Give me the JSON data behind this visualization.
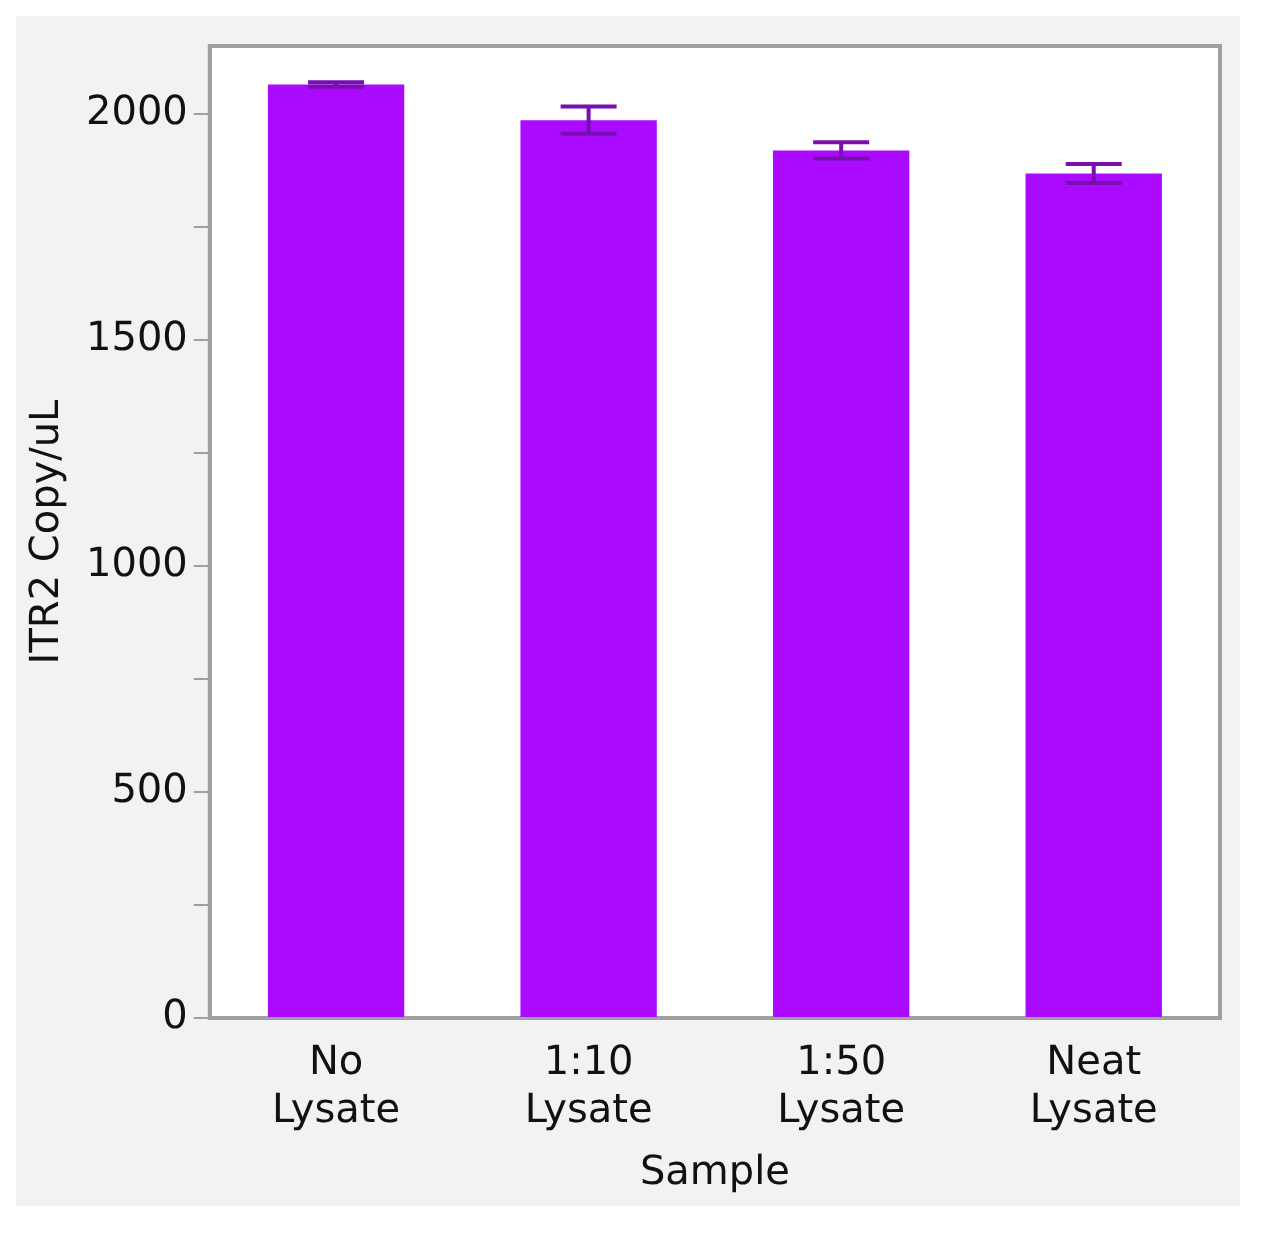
{
  "chart_data": {
    "type": "bar",
    "xlabel": "Sample",
    "ylabel": "ITR2 Copy/uL",
    "categories": [
      "No Lysate",
      "1:10 Lysate",
      "1:50 Lysate",
      "Neat Lysate"
    ],
    "values": [
      2065,
      1986,
      1919,
      1868
    ],
    "errors": [
      5,
      30,
      18,
      21
    ],
    "color": "#aa0aff",
    "ylim": [
      0,
      2150
    ],
    "yticks": [
      0,
      {
        "value": 250,
        "label": null
      },
      500,
      {
        "value": 750,
        "label": null
      },
      1000,
      {
        "value": 1250,
        "label": null
      },
      1500,
      {
        "value": 1750,
        "label": null
      },
      2000
    ],
    "grid": false,
    "legend": false
  }
}
